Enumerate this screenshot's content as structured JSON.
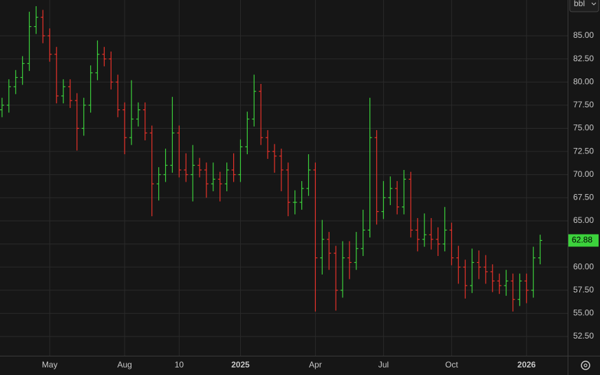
{
  "unit_selector": "bbl",
  "chart_data": {
    "type": "ohlc",
    "categories": [
      null,
      null,
      null,
      null,
      null,
      null,
      null,
      "May",
      null,
      null,
      null,
      null,
      null,
      null,
      null,
      null,
      null,
      null,
      "Aug",
      null,
      null,
      null,
      null,
      null,
      null,
      null,
      "10",
      null,
      null,
      null,
      null,
      null,
      null,
      null,
      null,
      "2025",
      null,
      null,
      null,
      null,
      null,
      null,
      null,
      null,
      null,
      null,
      "Apr",
      null,
      null,
      null,
      null,
      null,
      null,
      null,
      null,
      null,
      "Jul",
      null,
      null,
      null,
      null,
      null,
      null,
      null,
      null,
      null,
      "Oct",
      null,
      null,
      null,
      null,
      null,
      null,
      null,
      null,
      null,
      null,
      "2026",
      null,
      null
    ],
    "open": [
      77,
      77.5,
      79.5,
      80.5,
      82,
      86,
      87,
      85,
      83,
      78.5,
      79.5,
      78,
      75,
      77.5,
      81,
      83,
      82.5,
      80,
      77,
      74,
      76,
      77,
      74.5,
      69,
      70,
      71,
      74.5,
      70.5,
      70,
      71,
      70.5,
      69,
      69.5,
      69,
      70.5,
      70,
      73,
      76,
      79,
      74,
      72.5,
      72,
      70.5,
      67,
      67,
      68.5,
      70.5,
      61,
      63,
      61.5,
      57.5,
      61,
      60.5,
      62,
      64,
      74,
      66,
      67.5,
      68.5,
      66.5,
      69.5,
      64,
      63,
      63.5,
      63,
      62.5,
      64,
      61,
      60,
      58,
      60.5,
      60,
      59.5,
      58.5,
      58,
      58.5,
      56.5,
      58.5,
      57.5,
      61
    ],
    "high": [
      78.3,
      80.3,
      81.3,
      82.8,
      87.6,
      88.2,
      87.8,
      85.8,
      83.8,
      80.3,
      80.3,
      78.8,
      78.3,
      81.8,
      84.5,
      83.8,
      83.3,
      80.8,
      77.8,
      80.2,
      77.8,
      77.8,
      75.3,
      70.8,
      72.8,
      78.4,
      75.3,
      72.3,
      73.2,
      71.8,
      71.3,
      71.3,
      70.3,
      71.3,
      72.3,
      73.8,
      76.8,
      80.8,
      79.8,
      74.8,
      73.3,
      72.8,
      71.3,
      68.3,
      69.3,
      72.2,
      71.3,
      65.1,
      63.8,
      62.3,
      62.8,
      62.8,
      63.8,
      66.2,
      78.3,
      74.8,
      69.3,
      69.8,
      69.3,
      70.5,
      70.3,
      65.3,
      65.8,
      65.3,
      64.3,
      66.5,
      64.8,
      62.3,
      60.8,
      62.0,
      61.8,
      61.3,
      60.3,
      59.3,
      59.7,
      59.3,
      59.3,
      59.3,
      62.2,
      63.5
    ],
    "low": [
      76.2,
      76.7,
      78.7,
      79.7,
      81.2,
      85.2,
      84.2,
      82.2,
      77.7,
      77.7,
      77.2,
      72.6,
      74.2,
      76.7,
      80.2,
      81.7,
      79.2,
      76.2,
      72.2,
      73.2,
      75.2,
      73.7,
      65.5,
      67.2,
      69.2,
      70.2,
      69.7,
      69.2,
      67.1,
      69.7,
      67.5,
      68.2,
      67.1,
      68.2,
      69.2,
      69.2,
      72.2,
      75.2,
      73.2,
      71.7,
      70.2,
      68.2,
      65.5,
      65.7,
      66.2,
      67.7,
      55.2,
      59.2,
      59.7,
      55.3,
      56.7,
      58.7,
      59.7,
      61.2,
      63.2,
      64.6,
      65.2,
      66.7,
      65.7,
      65.7,
      63.2,
      61.7,
      62.2,
      61.9,
      61.2,
      61.7,
      60.2,
      58.2,
      56.6,
      57.2,
      58.7,
      58.2,
      57.3,
      57.1,
      56.9,
      55.2,
      55.8,
      56.1,
      56.7,
      60.3
    ],
    "close": [
      77.5,
      79.5,
      80.5,
      82,
      86,
      87,
      85,
      83,
      78.5,
      79.5,
      78,
      75,
      77.5,
      81,
      83,
      82.5,
      80,
      77,
      74,
      76,
      77,
      74.5,
      69,
      70,
      71,
      74.5,
      70.5,
      70,
      71,
      70.5,
      69,
      69.5,
      69,
      70.5,
      70,
      73,
      76,
      79,
      74,
      72.5,
      72,
      70.5,
      67,
      67,
      68.5,
      70.5,
      61,
      63,
      61.5,
      57.5,
      61,
      60.5,
      62,
      64,
      74,
      66,
      67.5,
      68.5,
      66.5,
      69.5,
      64,
      63,
      63.5,
      63,
      62.5,
      64,
      61,
      60,
      58,
      60.5,
      60,
      59.5,
      58.5,
      58,
      58.5,
      56.5,
      58.5,
      57.5,
      61,
      62.88
    ],
    "up_color": "#3cd23c",
    "down_color": "#e8322a",
    "ylim": [
      50.42,
      88.87
    ],
    "yticks": [
      {
        "value": 52.5,
        "label": "52.50"
      },
      {
        "value": 55,
        "label": "55.00"
      },
      {
        "value": 57.5,
        "label": "57.50"
      },
      {
        "value": 60,
        "label": "60.00"
      },
      {
        "value": 62.5,
        "label": "62.50"
      },
      {
        "value": 65,
        "label": "65.00"
      },
      {
        "value": 67.5,
        "label": "67.50"
      },
      {
        "value": 70,
        "label": "70.00"
      },
      {
        "value": 72.5,
        "label": "72.50"
      },
      {
        "value": 75,
        "label": "75.00"
      },
      {
        "value": 77.5,
        "label": "77.50"
      },
      {
        "value": 80,
        "label": "80.00"
      },
      {
        "value": 82.5,
        "label": "82.50"
      },
      {
        "value": 85,
        "label": "85.00"
      }
    ],
    "grid": true
  }
}
